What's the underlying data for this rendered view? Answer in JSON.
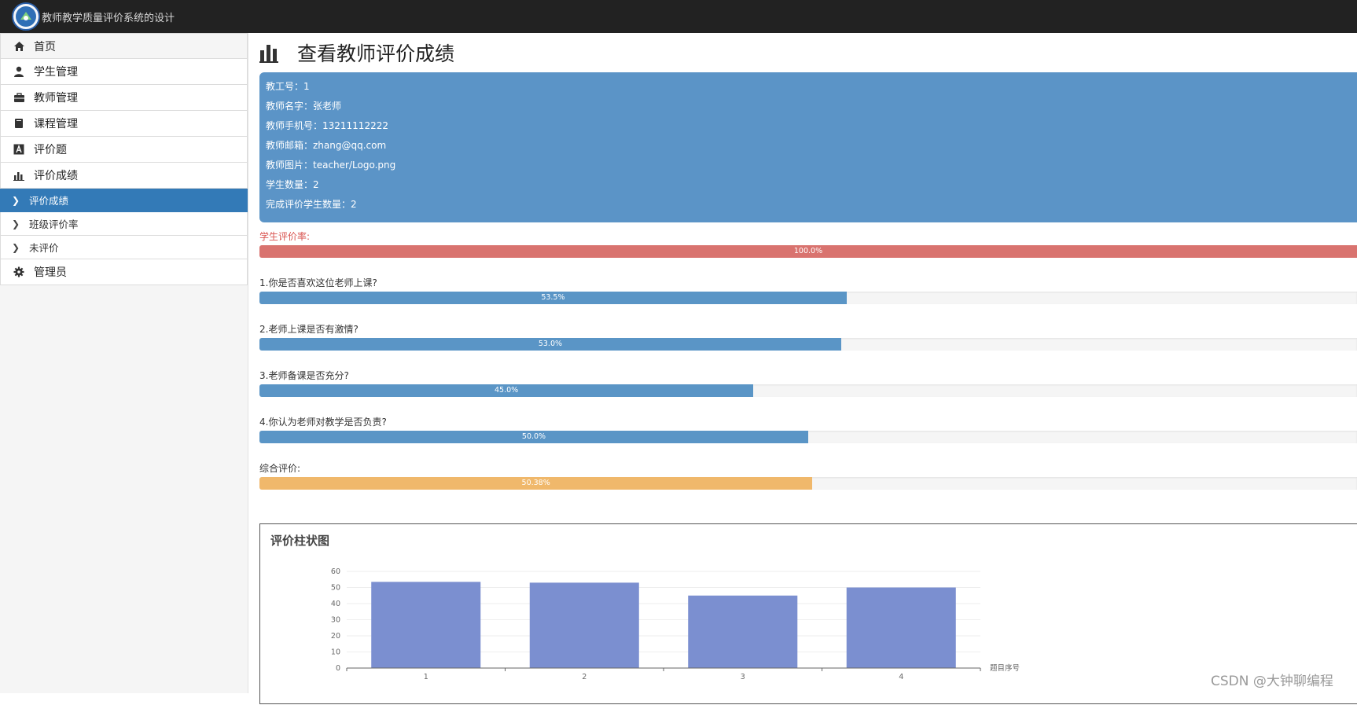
{
  "header": {
    "app_title": "教师教学质量评价系统的设计"
  },
  "sidebar": {
    "items": [
      {
        "label": "首页",
        "icon": "home-icon"
      },
      {
        "label": "学生管理",
        "icon": "user-icon"
      },
      {
        "label": "教师管理",
        "icon": "briefcase-icon"
      },
      {
        "label": "课程管理",
        "icon": "book-icon"
      },
      {
        "label": "评价题",
        "icon": "font-icon"
      },
      {
        "label": "评价成绩",
        "icon": "stats-icon"
      }
    ],
    "sub_items": [
      {
        "label": "评价成绩",
        "active": true
      },
      {
        "label": "班级评价率",
        "active": false
      },
      {
        "label": "未评价",
        "active": false
      }
    ],
    "admin": {
      "label": "管理员",
      "icon": "gear-icon"
    }
  },
  "main": {
    "title": "查看教师评价成绩",
    "info": [
      "教工号：1",
      "教师名字：张老师",
      "教师手机号：13211112222",
      "教师邮箱：zhang@qq.com",
      "教师图片：teacher/Logo.png",
      "学生数量：2",
      "完成评价学生数量：2"
    ],
    "student_rate": {
      "label": "学生评价率:",
      "value": 100.0,
      "text": "100.0%"
    },
    "questions": [
      {
        "label": "1.你是否喜欢这位老师上课?",
        "value": 53.5,
        "text": "53.5%"
      },
      {
        "label": "2.老师上课是否有激情?",
        "value": 53.0,
        "text": "53.0%"
      },
      {
        "label": "3.老师备课是否充分?",
        "value": 45.0,
        "text": "45.0%"
      },
      {
        "label": "4.你认为老师对教学是否负责?",
        "value": 50.0,
        "text": "50.0%"
      }
    ],
    "overall": {
      "label": "综合评价:",
      "value": 50.38,
      "text": "50.38%"
    }
  },
  "chart_data": {
    "type": "bar",
    "title": "评价柱状图",
    "categories": [
      "1",
      "2",
      "3",
      "4"
    ],
    "values": [
      53.5,
      53.0,
      45.0,
      50.0
    ],
    "xlabel": "题目序号",
    "ylabel": "",
    "ylim": [
      0,
      60
    ],
    "yticks": [
      0,
      10,
      20,
      30,
      40,
      50,
      60
    ],
    "bar_color": "#7b8fd0"
  },
  "watermark": "CSDN @大钟聊编程",
  "colors": {
    "topbar": "#222222",
    "active": "#337ab7",
    "info_box": "#5b94c7",
    "red": "#d9534f",
    "orange": "#f0b86b"
  }
}
